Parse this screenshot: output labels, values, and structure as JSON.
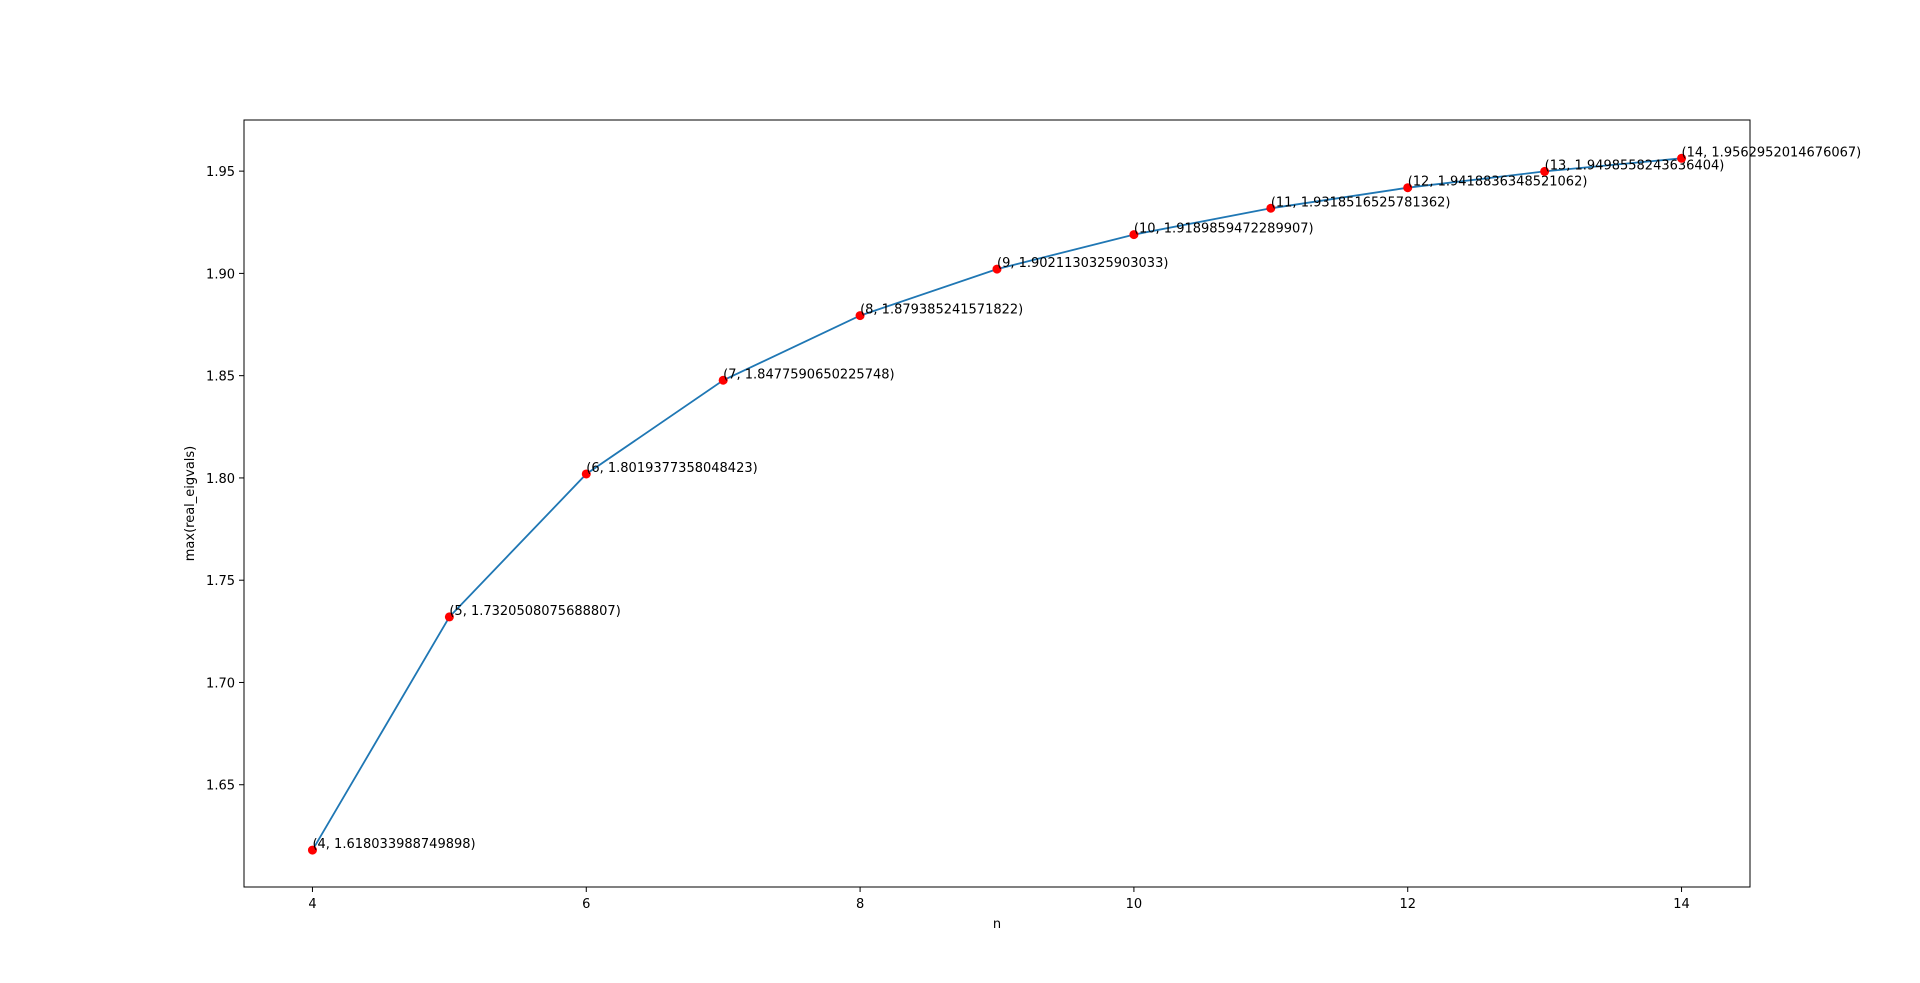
{
  "chart_data": {
    "type": "line",
    "title": "",
    "xlabel": "n",
    "ylabel": "max(real_eigvals)",
    "xlim": [
      3.5,
      14.5
    ],
    "ylim": [
      1.6,
      1.975
    ],
    "xticks": [
      4,
      6,
      8,
      10,
      12,
      14
    ],
    "xtick_labels": [
      "4",
      "6",
      "8",
      "10",
      "12",
      "14"
    ],
    "yticks": [
      1.65,
      1.7,
      1.75,
      1.8,
      1.85,
      1.9,
      1.95
    ],
    "ytick_labels": [
      "1.65",
      "1.70",
      "1.75",
      "1.80",
      "1.85",
      "1.90",
      "1.95"
    ],
    "grid": false,
    "line_color": "#1f77b4",
    "marker_color": "#ff0000",
    "series": [
      {
        "x": [
          4,
          5,
          6,
          7,
          8,
          9,
          10,
          11,
          12,
          13,
          14
        ],
        "values": [
          1.618033988749898,
          1.7320508075688807,
          1.8019377358048423,
          1.8477590650225748,
          1.879385241571822,
          1.9021130325903033,
          1.9189859472289907,
          1.9318516525781362,
          1.9418836348521062,
          1.9498558243636404,
          1.9562952014676067
        ],
        "labels": [
          "(4, 1.618033988749898)",
          "(5, 1.7320508075688807)",
          "(6, 1.8019377358048423)",
          "(7, 1.8477590650225748)",
          "(8, 1.879385241571822)",
          "(9, 1.9021130325903033)",
          "(10, 1.9189859472289907)",
          "(11, 1.9318516525781362)",
          "(12, 1.9418836348521062)",
          "(13, 1.9498558243636404)",
          "(14, 1.9562952014676067)"
        ]
      }
    ]
  }
}
